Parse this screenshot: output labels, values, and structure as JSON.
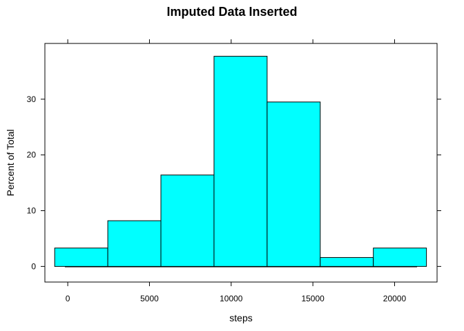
{
  "chart_data": {
    "type": "bar",
    "title": "Imputed Data Inserted",
    "xlabel": "steps",
    "ylabel": "Percent of Total",
    "xlim": [
      -1400,
      22600
    ],
    "ylim": [
      -2.8,
      40
    ],
    "xticks": [
      0,
      5000,
      10000,
      15000,
      20000
    ],
    "yticks": [
      0,
      10,
      20,
      30
    ],
    "bar_color": "#00ffff",
    "bins": [
      {
        "x0": -800,
        "x1": 2450,
        "value": 3.3
      },
      {
        "x0": 2450,
        "x1": 5700,
        "value": 8.2
      },
      {
        "x0": 5700,
        "x1": 8950,
        "value": 16.4
      },
      {
        "x0": 8950,
        "x1": 12200,
        "value": 37.7
      },
      {
        "x0": 12200,
        "x1": 15450,
        "value": 29.5
      },
      {
        "x0": 15450,
        "x1": 18700,
        "value": 1.6
      },
      {
        "x0": 18700,
        "x1": 21950,
        "value": 3.3
      }
    ]
  }
}
